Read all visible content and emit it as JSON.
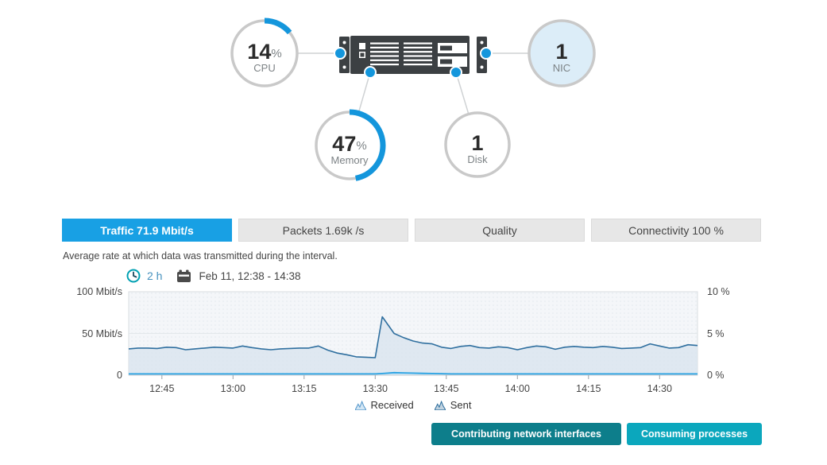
{
  "host_diagram": {
    "server_icon": "rack-server",
    "gauges": [
      {
        "id": "cpu",
        "value": "14",
        "unit": "%",
        "label": "CPU",
        "percent": 14,
        "style": "arc"
      },
      {
        "id": "nic",
        "value": "1",
        "unit": "",
        "label": "NIC",
        "percent": null,
        "style": "filled"
      },
      {
        "id": "memory",
        "value": "47",
        "unit": "%",
        "label": "Memory",
        "percent": 47,
        "style": "arc"
      },
      {
        "id": "disk",
        "value": "1",
        "unit": "",
        "label": "Disk",
        "percent": null,
        "style": "plain"
      }
    ]
  },
  "tabs": [
    {
      "label": "Traffic 71.9 Mbit/s",
      "active": true
    },
    {
      "label": "Packets 1.69k /s",
      "active": false
    },
    {
      "label": "Quality",
      "active": false
    },
    {
      "label": "Connectivity 100 %",
      "active": false
    }
  ],
  "description": "Average rate at which data was transmitted during the interval.",
  "time_selector": {
    "clock_icon": "clock-icon",
    "duration": "2 h",
    "calendar_icon": "calendar-icon",
    "range": "Feb 11, 12:38 - 14:38"
  },
  "chart_data": {
    "type": "area",
    "x_start": "12:38",
    "x_end": "14:38",
    "x_ticks": [
      "12:45",
      "13:00",
      "13:15",
      "13:30",
      "13:45",
      "14:00",
      "14:15",
      "14:30"
    ],
    "x_tick_minutes": [
      7,
      22,
      37,
      52,
      67,
      82,
      97,
      112
    ],
    "left_axis": {
      "labels": [
        "100 Mbit/s",
        "50 Mbit/s",
        "0"
      ],
      "min": 0,
      "max": 100,
      "unit": "Mbit/s"
    },
    "right_axis": {
      "labels": [
        "10 %",
        "5 %",
        "0 %"
      ],
      "min": 0,
      "max": 10,
      "unit": "%"
    },
    "grid": "single horizontal gridline at 50",
    "legend_position": "bottom",
    "series": [
      {
        "name": "Received",
        "color": "#2f6f9f",
        "fill": "#d9e4ee",
        "x_minutes": [
          0,
          2,
          4,
          6,
          8,
          10,
          12,
          14,
          16,
          18,
          20,
          22,
          24,
          26,
          28,
          30,
          32,
          34,
          36,
          38,
          40,
          42,
          44,
          46,
          48,
          50,
          52,
          53.5,
          56,
          58,
          60,
          62,
          64,
          66,
          68,
          70,
          72,
          74,
          76,
          78,
          80,
          82,
          84,
          86,
          88,
          90,
          92,
          94,
          96,
          98,
          100,
          102,
          104,
          106,
          108,
          110,
          112,
          114,
          116,
          118,
          120
        ],
        "values": [
          31.5,
          32.5,
          32.5,
          32,
          33.5,
          33,
          30.5,
          31.5,
          32.5,
          33.5,
          33,
          32.5,
          35,
          33,
          31.5,
          30.5,
          31.5,
          32,
          32.5,
          32.5,
          35,
          30,
          26.5,
          24.5,
          22,
          21.5,
          21,
          70,
          50,
          45,
          41,
          38.5,
          37.5,
          33.5,
          32,
          34.5,
          35.5,
          33,
          32.5,
          34,
          33,
          30.5,
          33,
          35,
          34,
          31,
          33.5,
          34.5,
          33.5,
          33,
          34.5,
          33.5,
          32,
          32.5,
          33,
          37.5,
          35,
          32.5,
          33,
          36.5,
          35.5
        ]
      },
      {
        "name": "Sent",
        "color": "#2aa2e2",
        "fill": "#c6e5f8",
        "x_minutes": [
          0,
          2,
          4,
          6,
          8,
          10,
          12,
          14,
          16,
          18,
          20,
          22,
          24,
          26,
          28,
          30,
          32,
          34,
          36,
          38,
          40,
          42,
          44,
          46,
          48,
          50,
          52,
          53.5,
          56,
          58,
          60,
          62,
          64,
          66,
          68,
          70,
          72,
          74,
          76,
          78,
          80,
          82,
          84,
          86,
          88,
          90,
          92,
          94,
          96,
          98,
          100,
          102,
          104,
          106,
          108,
          110,
          112,
          114,
          116,
          118,
          120
        ],
        "values": [
          1.5,
          1.5,
          1.5,
          1.5,
          1.5,
          1.5,
          1.5,
          1.5,
          1.5,
          1.5,
          1.5,
          1.5,
          1.5,
          1.5,
          1.5,
          1.5,
          1.5,
          1.5,
          1.5,
          1.5,
          1.5,
          1.5,
          1.5,
          1.5,
          1.5,
          1.5,
          1.5,
          2,
          3,
          2.8,
          2.5,
          2.2,
          2,
          1.8,
          1.5,
          1.5,
          1.5,
          1.5,
          1.5,
          1.5,
          1.5,
          1.5,
          1.5,
          1.5,
          1.5,
          1.5,
          1.5,
          1.5,
          1.5,
          1.5,
          1.5,
          1.5,
          1.5,
          1.5,
          1.5,
          1.5,
          1.5,
          1.5,
          1.5,
          1.5,
          1.5
        ]
      }
    ]
  },
  "legend": [
    {
      "label": "Received",
      "icon": "received-area-icon"
    },
    {
      "label": "Sent",
      "icon": "sent-area-icon"
    }
  ],
  "buttons": [
    {
      "label": "Contributing network interfaces",
      "color": "#0d7e8b"
    },
    {
      "label": "Consuming processes",
      "color": "#0ba7bd"
    }
  ],
  "colors": {
    "accent_blue": "#1496dc",
    "tab_active": "#18a0e4",
    "nic_fill": "#dcedf8",
    "circle_border": "#c9c9c9",
    "server_dark": "#3c4043",
    "teal_clock": "#00a0b2",
    "button_dark_teal": "#0d7e8b",
    "button_light_teal": "#0ba7bd",
    "plot_background": "#f4f6f9"
  }
}
